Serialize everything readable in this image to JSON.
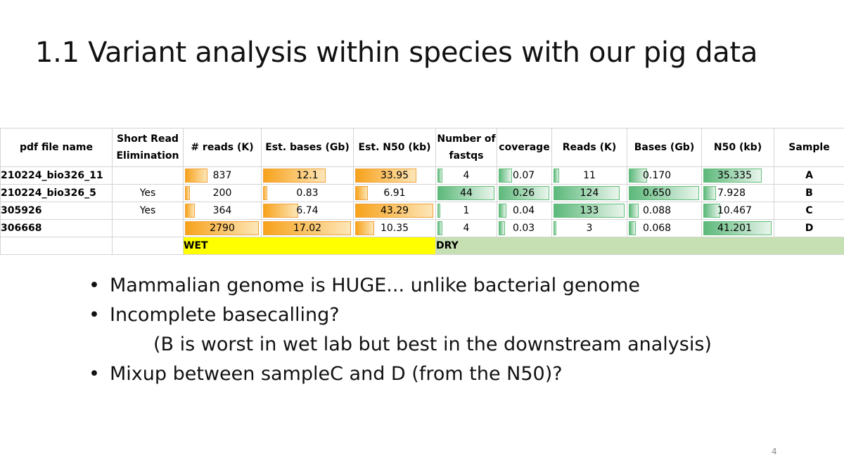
{
  "title": "1.1 Variant analysis within species with our pig data",
  "table": {
    "headers": {
      "name": "pdf file name",
      "short_read": "Short Read Elimination",
      "reads": "# reads (K)",
      "est_bases": "Est. bases (Gb)",
      "est_n50": "Est. N50 (kb)",
      "num_fastqs": "Number of fastqs",
      "coverage": "coverage",
      "reads2": "Reads (K)",
      "bases": "Bases (Gb)",
      "n50": "N50 (kb)",
      "sample": "Sample"
    },
    "rows": [
      {
        "name": "210224_bio326_11",
        "short_read": "",
        "reads": "837",
        "reads_bar": 0.3,
        "est_bases": "12.1",
        "est_bases_bar": 0.71,
        "est_n50": "33.95",
        "est_n50_bar": 0.78,
        "num_fastqs": "4",
        "num_fastqs_bar": 0.09,
        "coverage": "0.07",
        "coverage_bar": 0.27,
        "reads2": "11",
        "reads2_bar": 0.08,
        "bases": "0.170",
        "bases_bar": 0.26,
        "n50": "35.335",
        "n50_bar": 0.86,
        "sample": "A"
      },
      {
        "name": "210224_bio326_5",
        "short_read": "Yes",
        "reads": "200",
        "reads_bar": 0.07,
        "est_bases": "0.83",
        "est_bases_bar": 0.05,
        "est_n50": "6.91",
        "est_n50_bar": 0.16,
        "num_fastqs": "44",
        "num_fastqs_bar": 1.0,
        "coverage": "0.26",
        "coverage_bar": 1.0,
        "reads2": "124",
        "reads2_bar": 0.93,
        "bases": "0.650",
        "bases_bar": 1.0,
        "n50": "7.928",
        "n50_bar": 0.19,
        "sample": "B"
      },
      {
        "name": "305926",
        "short_read": "Yes",
        "reads": "364",
        "reads_bar": 0.13,
        "est_bases": "6.74",
        "est_bases_bar": 0.4,
        "est_n50": "43.29",
        "est_n50_bar": 1.0,
        "num_fastqs": "1",
        "num_fastqs_bar": 0.02,
        "coverage": "0.04",
        "coverage_bar": 0.15,
        "reads2": "133",
        "reads2_bar": 1.0,
        "bases": "0.088",
        "bases_bar": 0.14,
        "n50": "10.467",
        "n50_bar": 0.25,
        "sample": "C"
      },
      {
        "name": "306668",
        "short_read": "",
        "reads": "2790",
        "reads_bar": 1.0,
        "est_bases": "17.02",
        "est_bases_bar": 1.0,
        "est_n50": "10.35",
        "est_n50_bar": 0.24,
        "num_fastqs": "4",
        "num_fastqs_bar": 0.09,
        "coverage": "0.03",
        "coverage_bar": 0.12,
        "reads2": "3",
        "reads2_bar": 0.02,
        "bases": "0.068",
        "bases_bar": 0.1,
        "n50": "41.201",
        "n50_bar": 1.0,
        "sample": "D"
      }
    ],
    "wet_label": "WET",
    "dry_label": "DRY"
  },
  "bullets": [
    "Mammalian genome is HUGE... unlike bacterial genome",
    "Incomplete basecalling?",
    "(B is worst in wet lab but best in the downstream analysis)",
    "Mixup between sampleC and D (from the N50)?"
  ],
  "page_number": "4",
  "colors": {
    "wet": "#ffff00",
    "dry": "#c6e0b4",
    "orange_bar": "#f7a21b",
    "green_bar": "#63be7b"
  }
}
